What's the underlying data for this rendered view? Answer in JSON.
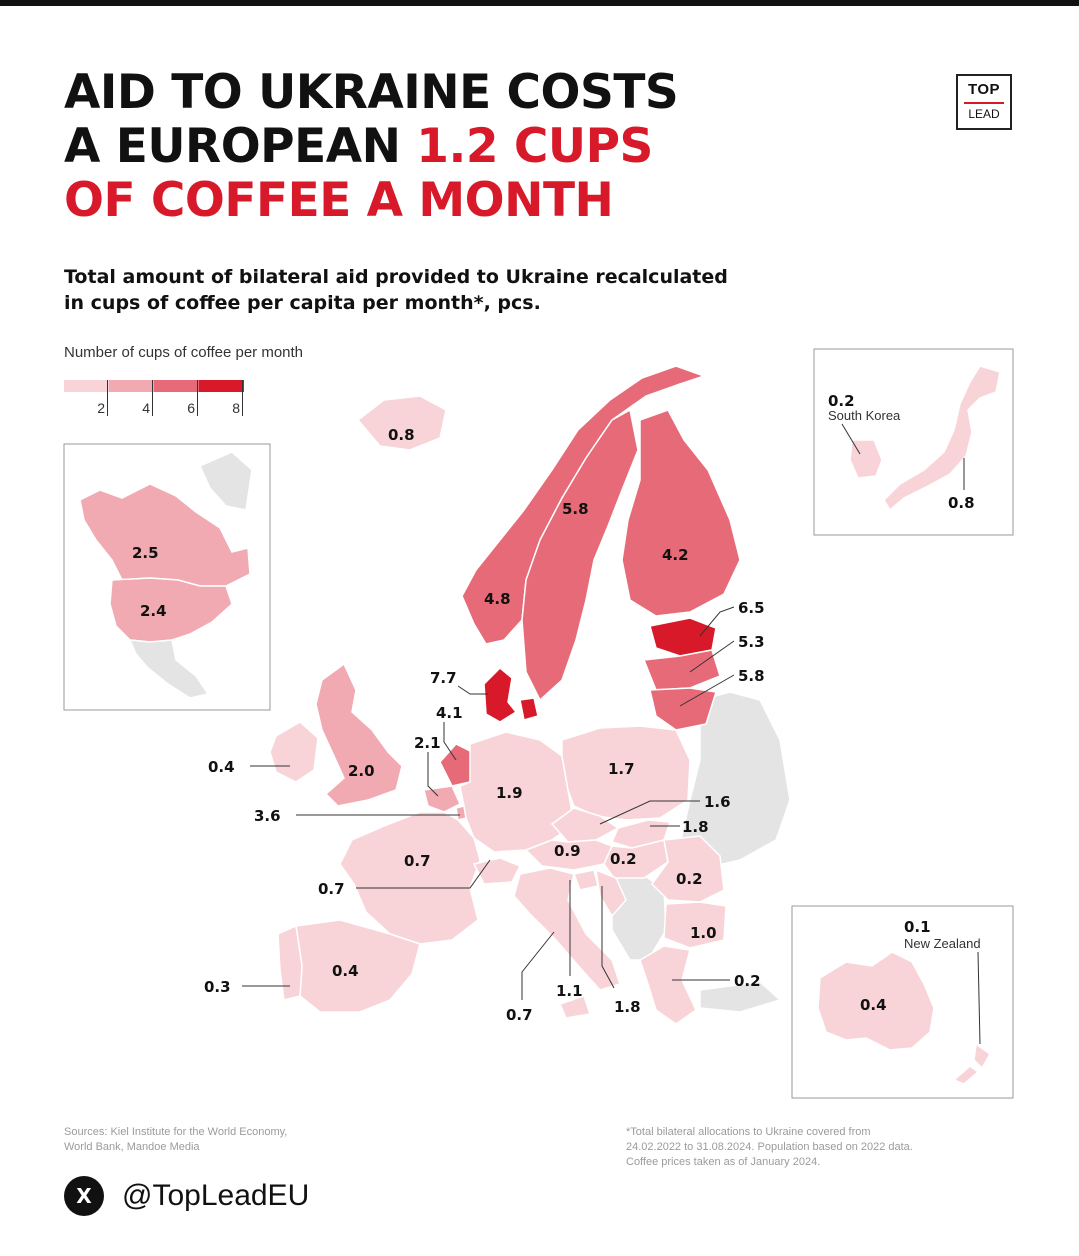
{
  "title": {
    "line1": "AID TO UKRAINE COSTS",
    "line2_black": "A EUROPEAN",
    "line2_red": "1.2 CUPS",
    "line3_red": "OF COFFEE A MONTH"
  },
  "logo": {
    "line1": "TOP",
    "line2": "LEAD"
  },
  "subtitle": {
    "line1": "Total amount of bilateral aid provided to Ukraine recalculated",
    "line2": "in cups of coffee per capita per month*, pcs."
  },
  "legend": {
    "title": "Number of cups of coffee per month",
    "ticks": [
      "2",
      "4",
      "6",
      "8"
    ],
    "colors": [
      "#f8d4d8",
      "#f1aab1",
      "#e66a77",
      "#d7192a"
    ]
  },
  "colors": {
    "accent": "#d7192a",
    "no_data": "#e4e4e4",
    "border": "#ffffff"
  },
  "map_values": {
    "iceland": "0.8",
    "sweden": "5.8",
    "finland": "4.2",
    "norway": "4.8",
    "estonia": "6.5",
    "latvia": "5.3",
    "lithuania": "5.8",
    "denmark": "7.7",
    "netherlands": "4.1",
    "belgium": "2.1",
    "ireland": "0.4",
    "uk": "2.0",
    "luxembourg": "3.6",
    "germany": "1.9",
    "poland": "1.7",
    "czechia": "1.6",
    "slovakia": "1.8",
    "france": "0.7",
    "switzerland": "0.7",
    "austria": "0.9",
    "hungary": "0.2",
    "romania": "0.2",
    "bulgaria": "1.0",
    "greece": "0.2",
    "spain": "0.4",
    "portugal": "0.3",
    "slovenia": "1.1",
    "italy": "0.7",
    "croatia": "1.8",
    "canada": "2.5",
    "usa": "2.4",
    "south_korea": "0.2",
    "south_korea_label": "South Korea",
    "japan": "0.8",
    "australia": "0.4",
    "new_zealand": "0.1",
    "new_zealand_label": "New Zealand"
  },
  "footer": {
    "sources_line1": "Sources: Kiel Institute for the World Economy,",
    "sources_line2": "World Bank, Mandoe Media",
    "note_line1": "*Total bilateral allocations to Ukraine covered from",
    "note_line2": "24.02.2022 to 31.08.2024.  Population based on 2022 data.",
    "note_line3": "Coffee prices taken as of January 2024."
  },
  "handle": {
    "icon": "x-logo-icon",
    "icon_glyph": "X",
    "text": "@TopLeadEU"
  }
}
